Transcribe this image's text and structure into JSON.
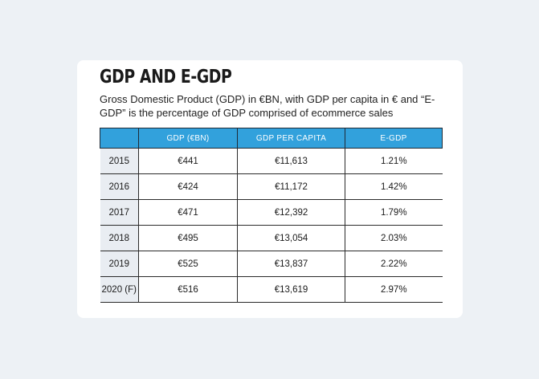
{
  "card": {
    "title": "GDP AND E-GDP",
    "subtitle": "Gross Domestic Product (GDP) in €BN, with GDP per capita in € and “E-GDP” is the percentage of GDP comprised of ecommerce sales"
  },
  "table": {
    "headers": [
      "",
      "GDP (€BN)",
      "GDP PER CAPITA",
      "E-GDP"
    ],
    "rows": [
      {
        "year": "2015",
        "gdp": "€441",
        "per_capita": "€11,613",
        "egdp": "1.21%"
      },
      {
        "year": "2016",
        "gdp": "€424",
        "per_capita": "€11,172",
        "egdp": "1.42%"
      },
      {
        "year": "2017",
        "gdp": "€471",
        "per_capita": "€12,392",
        "egdp": "1.79%"
      },
      {
        "year": "2018",
        "gdp": "€495",
        "per_capita": "€13,054",
        "egdp": "2.03%"
      },
      {
        "year": "2019",
        "gdp": "€525",
        "per_capita": "€13,837",
        "egdp": "2.22%"
      },
      {
        "year": "2020 (F)",
        "gdp": "€516",
        "per_capita": "€13,619",
        "egdp": "2.97%"
      }
    ]
  },
  "colors": {
    "header_bg": "#32a1dc",
    "year_cell_bg": "#e9edf2",
    "page_bg": "#edf1f5",
    "card_bg": "#ffffff"
  }
}
